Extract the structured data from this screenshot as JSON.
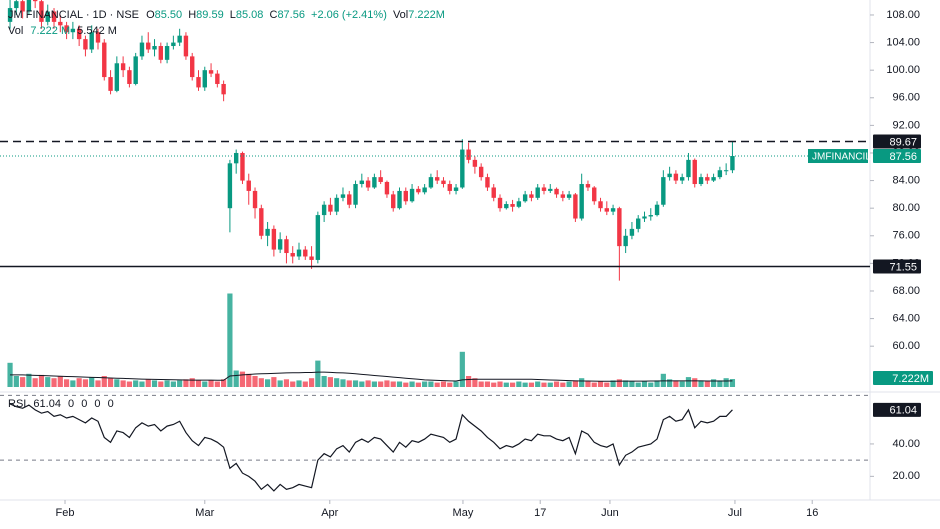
{
  "chart_data": [
    {
      "type": "candlestick",
      "title": "JM FINANCIAL · 1D · NSE",
      "legend": [
        {
          "label": "O",
          "value": "85.50"
        },
        {
          "label": "H",
          "value": "89.59"
        },
        {
          "label": "L",
          "value": "85.08"
        },
        {
          "label": "C",
          "value": "87.56"
        }
      ],
      "change": "+2.06 (+2.41%)",
      "volume_label": "Vol",
      "volume_text": "7.222M",
      "up_color": "#089981",
      "down_color": "#f23645",
      "ohlc": [
        [
          107,
          111,
          106,
          109
        ],
        [
          109,
          112,
          108,
          110
        ],
        [
          110,
          111,
          107.5,
          108.5
        ],
        [
          108.5,
          112,
          108,
          111
        ],
        [
          111,
          112,
          109,
          110
        ],
        [
          110,
          110.5,
          106,
          107
        ],
        [
          107,
          109.5,
          106.5,
          108.5
        ],
        [
          108.5,
          109,
          106,
          107
        ],
        [
          107,
          108,
          105.5,
          106.5
        ],
        [
          106.5,
          107,
          104.5,
          105.5
        ],
        [
          105.5,
          107,
          104.5,
          106
        ],
        [
          106,
          106.5,
          103.5,
          104.5
        ],
        [
          104.5,
          105,
          102,
          103
        ],
        [
          103,
          106.5,
          102.5,
          105.5
        ],
        [
          105.5,
          106,
          103,
          104
        ],
        [
          104,
          104.5,
          98.5,
          99
        ],
        [
          99,
          100,
          96.5,
          97
        ],
        [
          97,
          102,
          96.8,
          101
        ],
        [
          101,
          102,
          99,
          100
        ],
        [
          100,
          100.5,
          97.5,
          98
        ],
        [
          98,
          102.5,
          97.8,
          102
        ],
        [
          102,
          105,
          101.5,
          104
        ],
        [
          104,
          105.5,
          102.5,
          103
        ],
        [
          103,
          104.5,
          102,
          103.5
        ],
        [
          103.5,
          104,
          101,
          101.5
        ],
        [
          101.5,
          104,
          101,
          103.5
        ],
        [
          103.5,
          105,
          103,
          104
        ],
        [
          104,
          106,
          103.5,
          105
        ],
        [
          105,
          105.5,
          101.5,
          102
        ],
        [
          102,
          102.5,
          98.5,
          99
        ],
        [
          99,
          100,
          97,
          97.5
        ],
        [
          97.5,
          100.5,
          97,
          100
        ],
        [
          100,
          101,
          99,
          99.5
        ],
        [
          99.5,
          100,
          97.5,
          98
        ],
        [
          98,
          98.5,
          95.5,
          96.5
        ],
        [
          80,
          87,
          76.5,
          86.5
        ],
        [
          86.5,
          88.5,
          85,
          88
        ],
        [
          88,
          88.2,
          83.5,
          84
        ],
        [
          84,
          85,
          80.5,
          82.5
        ],
        [
          82.5,
          83,
          78.5,
          80
        ],
        [
          80,
          80.5,
          75.5,
          76
        ],
        [
          76,
          78,
          74.5,
          77
        ],
        [
          77,
          77.5,
          73,
          74
        ],
        [
          74,
          76.5,
          73.5,
          75.5
        ],
        [
          75.5,
          76,
          72,
          73.5
        ],
        [
          73.5,
          74.5,
          72,
          73
        ],
        [
          73,
          75,
          72.5,
          74
        ],
        [
          74,
          74.5,
          72.5,
          73
        ],
        [
          73,
          74.5,
          71.2,
          72.5
        ],
        [
          72.5,
          79.5,
          72,
          79
        ],
        [
          79,
          81,
          78,
          80.5
        ],
        [
          80.5,
          81.5,
          79,
          79.5
        ],
        [
          79.5,
          82,
          79,
          81.5
        ],
        [
          81.5,
          83,
          81,
          82
        ],
        [
          82,
          82.5,
          80,
          80.5
        ],
        [
          80.5,
          84,
          80,
          83.5
        ],
        [
          83.5,
          85,
          83,
          84
        ],
        [
          84,
          84.5,
          82.5,
          83
        ],
        [
          83,
          85,
          82.8,
          84.5
        ],
        [
          84.5,
          85.5,
          83.5,
          83.8
        ],
        [
          83.8,
          84,
          81.5,
          82
        ],
        [
          82,
          82.5,
          79.5,
          80
        ],
        [
          80,
          83,
          79.8,
          82.5
        ],
        [
          82.5,
          83,
          80.5,
          81
        ],
        [
          81,
          83.5,
          80.8,
          82.8
        ],
        [
          82.8,
          83.2,
          82,
          82.3
        ],
        [
          82.3,
          83.5,
          82,
          83
        ],
        [
          83,
          85,
          82.8,
          84.5
        ],
        [
          84.5,
          85.5,
          83.5,
          84
        ],
        [
          84,
          84.5,
          83,
          83.5
        ],
        [
          83.5,
          84,
          82,
          82.5
        ],
        [
          82.5,
          83.5,
          82,
          83
        ],
        [
          83,
          90,
          82.8,
          88.5
        ],
        [
          88.5,
          89.5,
          86.5,
          87
        ],
        [
          87,
          87.5,
          85,
          86
        ],
        [
          86,
          86.5,
          84,
          84.5
        ],
        [
          84.5,
          85,
          82.5,
          83
        ],
        [
          83,
          83.5,
          81,
          81.5
        ],
        [
          81.5,
          82,
          79.5,
          80
        ],
        [
          80,
          81,
          79.8,
          80.6
        ],
        [
          80.6,
          81.2,
          79.5,
          80.2
        ],
        [
          80.2,
          81.5,
          80,
          81
        ],
        [
          81,
          82.5,
          80.8,
          82
        ],
        [
          82,
          82.5,
          81,
          81.5
        ],
        [
          81.5,
          83.5,
          81.2,
          83
        ],
        [
          83,
          83.5,
          82,
          82.5
        ],
        [
          82.5,
          83.5,
          82.2,
          82.8
        ],
        [
          82.8,
          83,
          81.5,
          82
        ],
        [
          82,
          82.5,
          81,
          81.5
        ],
        [
          81.5,
          82.5,
          81.2,
          82
        ],
        [
          82,
          82.2,
          78,
          78.5
        ],
        [
          78.5,
          85,
          78.2,
          83.5
        ],
        [
          83.5,
          84,
          82.5,
          83
        ],
        [
          83,
          83.2,
          80.5,
          81
        ],
        [
          81,
          81.5,
          79.5,
          80
        ],
        [
          80,
          81,
          79,
          79.5
        ],
        [
          79.5,
          80.5,
          79,
          80
        ],
        [
          80,
          80.2,
          69.5,
          74.5
        ],
        [
          74.5,
          77,
          73.5,
          76
        ],
        [
          76,
          78,
          75.5,
          77
        ],
        [
          77,
          79,
          76.5,
          78.5
        ],
        [
          78.5,
          79.5,
          78,
          78.8
        ],
        [
          78.8,
          80,
          78.2,
          79
        ],
        [
          79,
          81,
          78.8,
          80.5
        ],
        [
          80.5,
          85.5,
          80.2,
          84.5
        ],
        [
          84.5,
          86,
          84,
          85
        ],
        [
          85,
          85.5,
          83.5,
          84
        ],
        [
          84,
          85,
          83.5,
          84.5
        ],
        [
          84.5,
          88,
          84,
          87
        ],
        [
          87,
          87.2,
          83,
          83.5
        ],
        [
          83.5,
          85,
          83.2,
          84.5
        ],
        [
          84.5,
          85,
          83.5,
          84
        ],
        [
          84,
          85,
          83.8,
          84.5
        ],
        [
          84.5,
          86,
          84.2,
          85.5
        ],
        [
          85.5,
          86.5,
          84.8,
          85.5
        ],
        [
          85.5,
          89.59,
          85.08,
          87.56
        ]
      ],
      "xlim": [
        -1.6,
        136.9
      ],
      "xticks": [
        {
          "value": 8.75,
          "label": "Feb"
        },
        {
          "value": 31.0,
          "label": "Mar"
        },
        {
          "value": 50.9,
          "label": "Apr"
        },
        {
          "value": 72.1,
          "label": "May"
        },
        {
          "value": 84.4,
          "label": "17"
        },
        {
          "value": 95.5,
          "label": "Jun"
        },
        {
          "value": 115.4,
          "label": "Jul"
        },
        {
          "value": 127.7,
          "label": "16"
        }
      ],
      "ylim": [
        53.65,
        110.17
      ],
      "yticks": [
        {
          "value": 108,
          "label": "108.00"
        },
        {
          "value": 104,
          "label": "104.00"
        },
        {
          "value": 100,
          "label": "100.00"
        },
        {
          "value": 96,
          "label": "96.00"
        },
        {
          "value": 92,
          "label": "92.00"
        },
        {
          "value": 88,
          "label": "88.00"
        },
        {
          "value": 84,
          "label": "84.00"
        },
        {
          "value": 80,
          "label": "80.00"
        },
        {
          "value": 76,
          "label": "76.00"
        },
        {
          "value": 72,
          "label": "72.00"
        },
        {
          "value": 68,
          "label": "68.00"
        },
        {
          "value": 64,
          "label": "64.00"
        },
        {
          "value": 60,
          "label": "60.00"
        }
      ],
      "levels": [
        {
          "value": 89.67,
          "style": "dashed"
        },
        {
          "value": 71.55,
          "style": "solid"
        }
      ],
      "last_price_name": "JMFINANCIL"
    },
    {
      "type": "bar",
      "title": "Vol",
      "legend_values": [
        "7.222 M",
        "5.542 M"
      ],
      "values": [
        22,
        10,
        9,
        12,
        8,
        11,
        9,
        8,
        10,
        7,
        6,
        8,
        7,
        9,
        6,
        10,
        8,
        7,
        6,
        5,
        6,
        5,
        7,
        6,
        5,
        6,
        5,
        6,
        7,
        8,
        6,
        5,
        6,
        5,
        7,
        85,
        15,
        14,
        12,
        10,
        8,
        7,
        9,
        6,
        7,
        5,
        6,
        5,
        8,
        24,
        10,
        9,
        8,
        7,
        6,
        6,
        5,
        6,
        5,
        5,
        6,
        5,
        5,
        4,
        5,
        4,
        5,
        5,
        4,
        5,
        4,
        5,
        32,
        10,
        8,
        5,
        5,
        4,
        5,
        4,
        4,
        5,
        4,
        4,
        5,
        4,
        4,
        5,
        4,
        5,
        6,
        8,
        5,
        4,
        5,
        4,
        6,
        7,
        6,
        5,
        4,
        5,
        4,
        6,
        12,
        7,
        6,
        5,
        9,
        8,
        6,
        5,
        7,
        6,
        8,
        7.222
      ],
      "ma": [
        11,
        11,
        11,
        10.8,
        10.6,
        10.4,
        10.2,
        10,
        9.8,
        9.6,
        9.4,
        9.2,
        9,
        8.8,
        8.6,
        8.4,
        8.2,
        8,
        7.8,
        7.6,
        7.4,
        7.2,
        7,
        6.9,
        6.8,
        6.7,
        6.6,
        6.5,
        6.4,
        6.3,
        6.3,
        6.2,
        6.2,
        6.1,
        6.1,
        10,
        10.5,
        11,
        11.4,
        11.8,
        12,
        12.2,
        12.4,
        12.6,
        12.8,
        13,
        13,
        13.2,
        13.2,
        13.5,
        13.5,
        13.3,
        13,
        12.8,
        12.5,
        12,
        11.5,
        11,
        10.5,
        10,
        9.5,
        9,
        8.5,
        8,
        7.5,
        7,
        6.5,
        6.2,
        6,
        5.8,
        5.6,
        5.5,
        6.5,
        6.8,
        7,
        7,
        7,
        7,
        7,
        7,
        7,
        7,
        7,
        7,
        6.8,
        6.6,
        6.4,
        6.2,
        6,
        5.8,
        5.6,
        5.5,
        5.4,
        5.3,
        5.2,
        5.2,
        5.2,
        5.3,
        5.3,
        5.3,
        5.3,
        5.3,
        5.4,
        5.4,
        5.6,
        5.6,
        5.6,
        5.6,
        5.6,
        5.6,
        5.6,
        5.5,
        5.5,
        5.5,
        5.5,
        5.542
      ],
      "ma_color": "#131722",
      "ylim": [
        0,
        100
      ],
      "last_value_label": "7.222M"
    },
    {
      "type": "line",
      "title": "RSI",
      "legend_values": [
        "61.04",
        "0",
        "0",
        "0",
        "0"
      ],
      "values": [
        64.7,
        63,
        62,
        64,
        61,
        59,
        60,
        57,
        58,
        56,
        57,
        55,
        53,
        56,
        54,
        44,
        41,
        48,
        47,
        44,
        50,
        53,
        51,
        52,
        48,
        51,
        52,
        54,
        47,
        42,
        39,
        44,
        43,
        41,
        38,
        25,
        28,
        22,
        20,
        17,
        12,
        15,
        11,
        15,
        12,
        13,
        15,
        14,
        13,
        30,
        34,
        32,
        37,
        39,
        35,
        41,
        43,
        41,
        44,
        43,
        39,
        35,
        41,
        38,
        42,
        41,
        43,
        46,
        45,
        44,
        41,
        43,
        58,
        54,
        51,
        48,
        44,
        41,
        37,
        39,
        38,
        40,
        43,
        42,
        46,
        45,
        45,
        43,
        42,
        44,
        34,
        48,
        46,
        41,
        39,
        38,
        40,
        27,
        33,
        35,
        38,
        39,
        40,
        43,
        55,
        57,
        54,
        55,
        61,
        50,
        54,
        53,
        54,
        57,
        57,
        61.04
      ],
      "color": "#131722",
      "ylim": [
        5.4,
        70.2
      ],
      "yticks": [
        {
          "value": 40,
          "label": "40.00"
        },
        {
          "value": 20,
          "label": "20.00"
        }
      ],
      "bands": [
        70,
        30
      ]
    }
  ]
}
